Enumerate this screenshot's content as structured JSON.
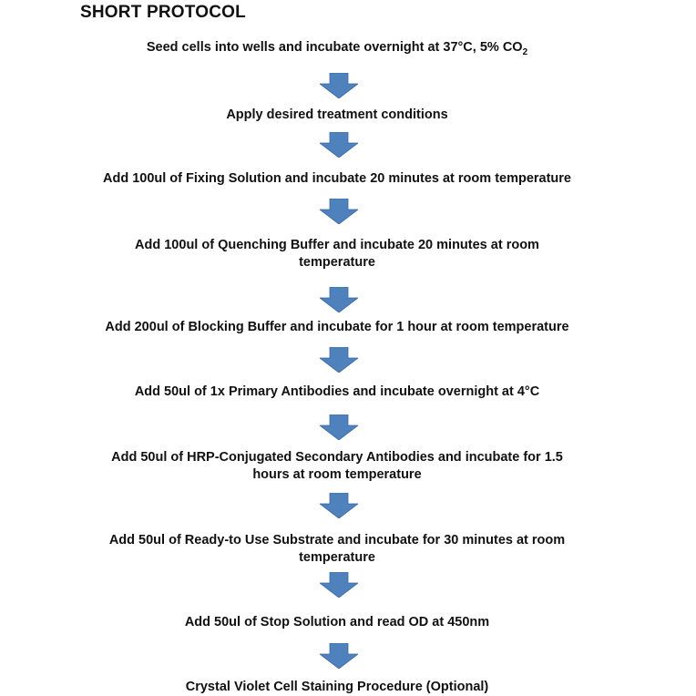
{
  "title": "SHORT PROTOCOL",
  "arrow_color": "#4f81bd",
  "steps": [
    {
      "lines": [
        "Seed cells into wells and incubate overnight at 37°C, 5% CO"
      ],
      "subscript": "2"
    },
    {
      "lines": [
        "Apply desired treatment conditions"
      ]
    },
    {
      "lines": [
        "Add 100ul of Fixing Solution and incubate 20 minutes at room temperature"
      ]
    },
    {
      "lines": [
        "Add 100ul of Quenching Buffer and incubate 20 minutes at room",
        "temperature"
      ]
    },
    {
      "lines": [
        "Add 200ul of Blocking Buffer and incubate for 1 hour at room temperature"
      ]
    },
    {
      "lines": [
        "Add 50ul of 1x Primary Antibodies and incubate overnight at 4°C"
      ]
    },
    {
      "lines": [
        "Add 50ul of HRP-Conjugated Secondary Antibodies and incubate for 1.5",
        "hours at room temperature"
      ]
    },
    {
      "lines": [
        "Add 50ul of Ready-to Use Substrate and incubate for 30 minutes at room",
        "temperature"
      ]
    },
    {
      "lines": [
        "Add 50ul of Stop Solution and read OD at 450nm"
      ]
    },
    {
      "lines": [
        "Crystal Violet Cell Staining Procedure (Optional)"
      ]
    }
  ]
}
